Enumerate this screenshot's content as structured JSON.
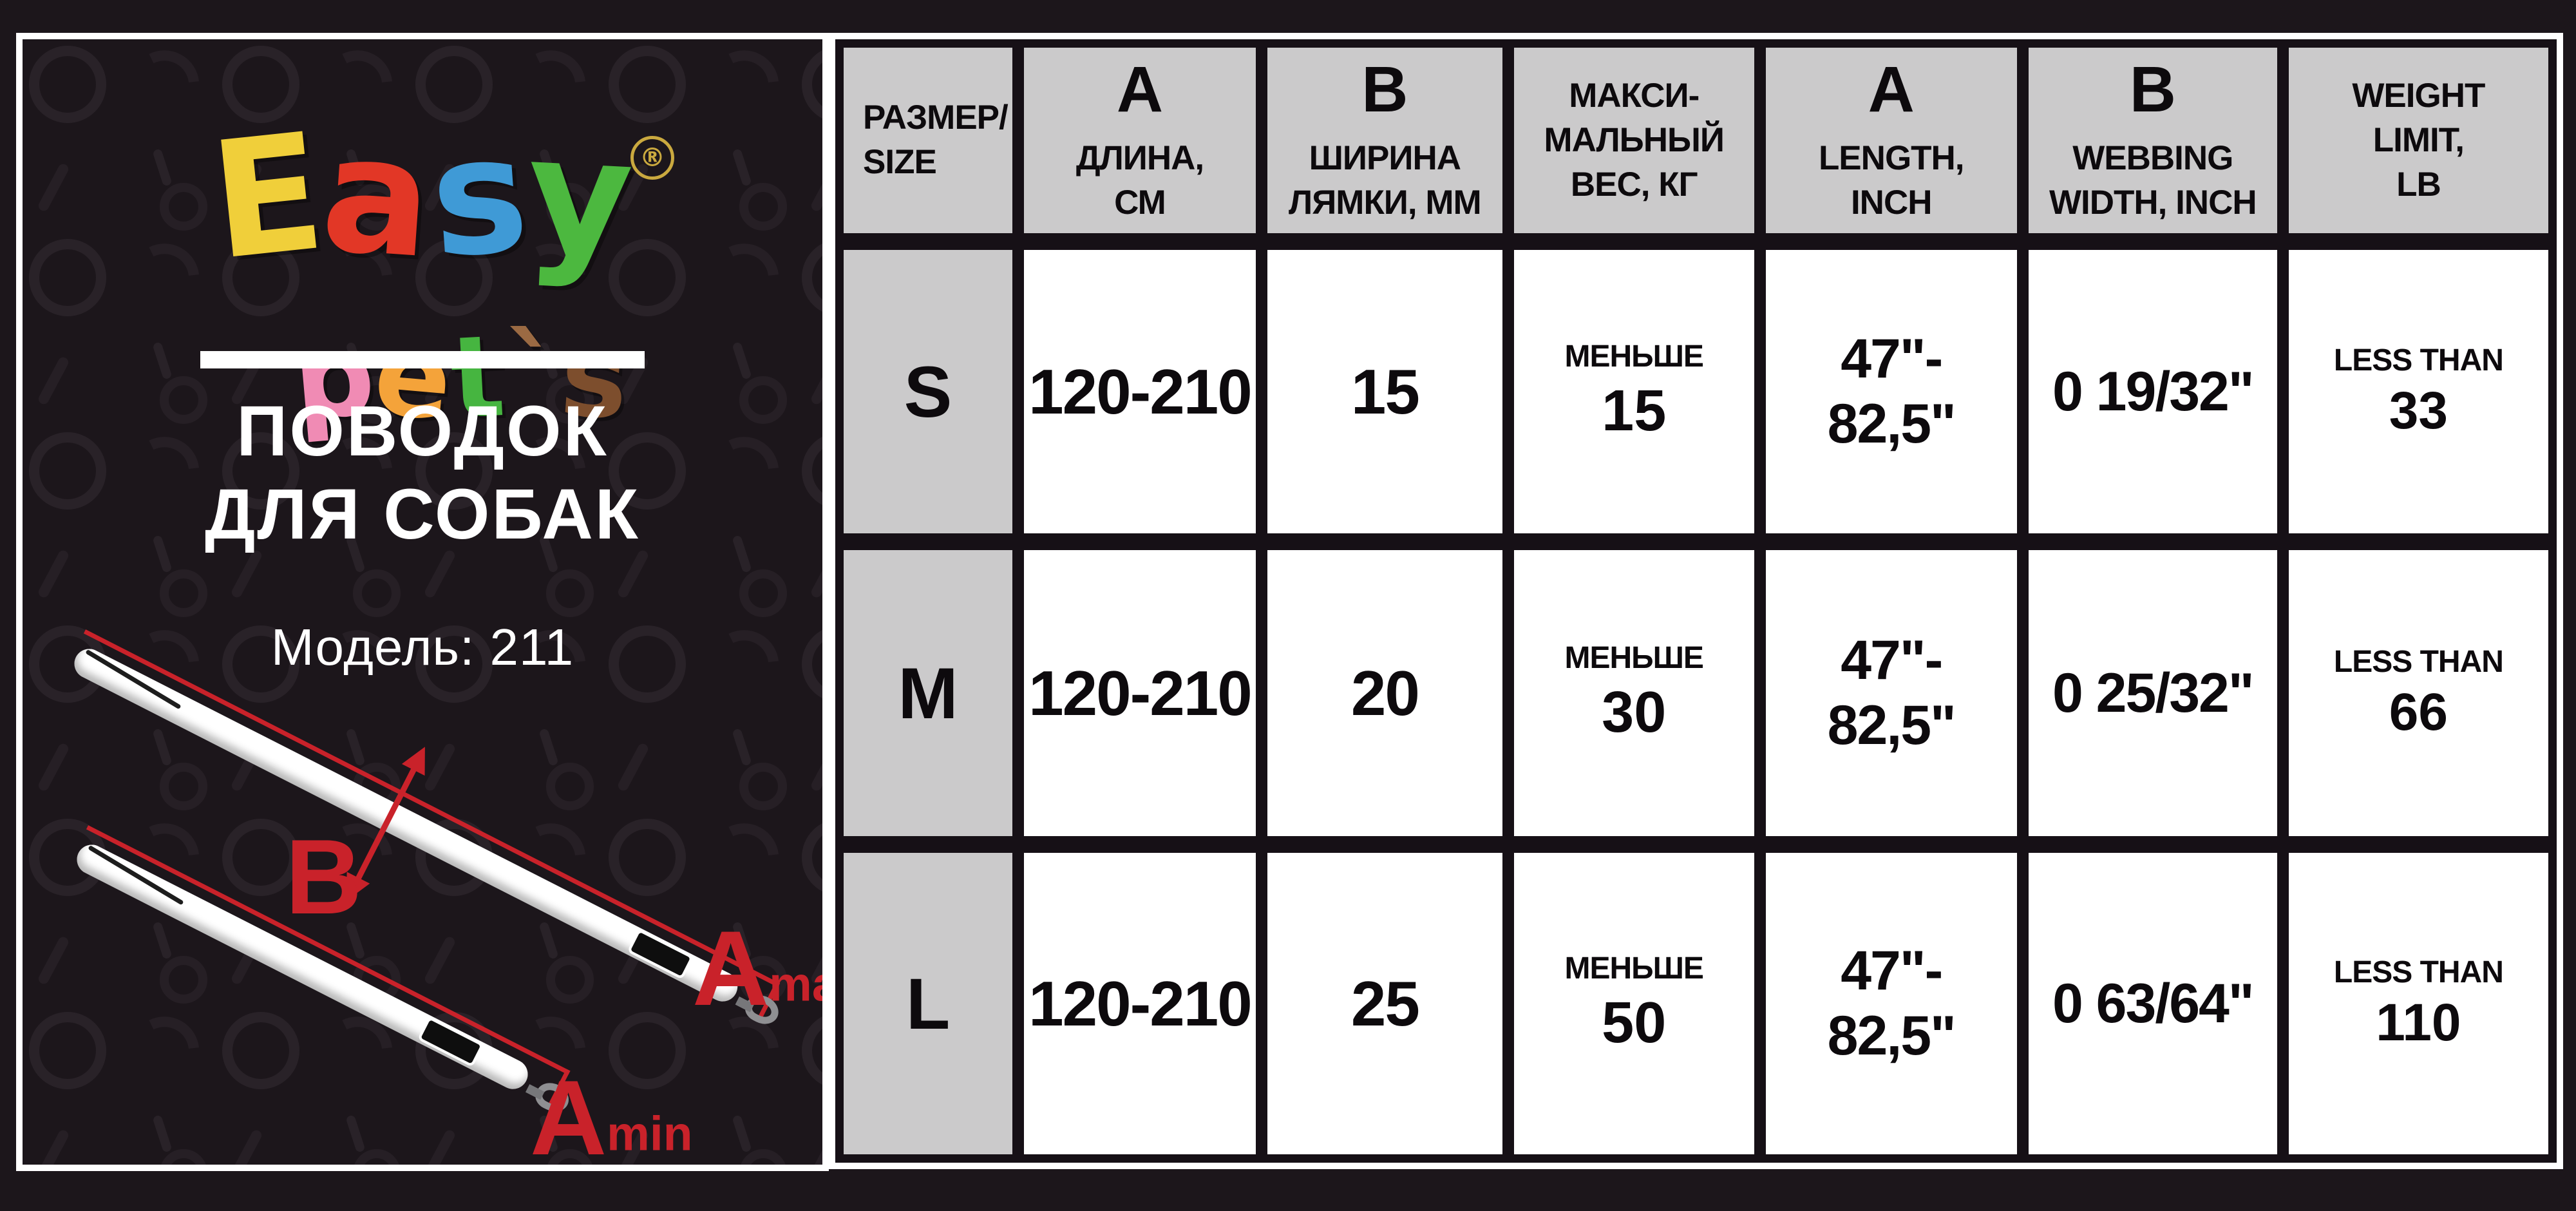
{
  "colors": {
    "accent_red": "#c9222a",
    "header_gray": "#cbcacb",
    "panel_bg": "#201a20",
    "page_bg": "#1c161b",
    "grid_black": "#161016",
    "white": "#ffffff"
  },
  "brand": {
    "easy": [
      {
        "ch": "E",
        "color": "#f0cf3a",
        "rot": -6
      },
      {
        "ch": "a",
        "color": "#e23726",
        "rot": 4
      },
      {
        "ch": "s",
        "color": "#3f9ad6",
        "rot": -4
      },
      {
        "ch": "y",
        "color": "#4cb83f",
        "rot": 3
      }
    ],
    "pets": [
      {
        "ch": "p",
        "color": "#f08bb4",
        "rot": -5
      },
      {
        "ch": "e",
        "color": "#f4a33a",
        "rot": 5
      },
      {
        "ch": "t",
        "color": "#46b540",
        "rot": -3
      },
      {
        "ch": "`",
        "color": "#9b6a43",
        "rot": 0
      },
      {
        "ch": "s",
        "color": "#7d4e2d",
        "rot": 4
      }
    ],
    "reg_mark": "®"
  },
  "panel": {
    "title_line1": "ПОВОДОК",
    "title_line2": "ДЛЯ СОБАК",
    "model": "Модель: 211"
  },
  "diagram": {
    "b_label": "B",
    "a_max_base": "A",
    "a_max_sup": "max",
    "a_min_base": "A",
    "a_min_sup": "min"
  },
  "table": {
    "headers": [
      {
        "big": "",
        "lines": [
          "РАЗМЕР/",
          "SIZE"
        ]
      },
      {
        "big": "A",
        "lines": [
          "ДЛИНА,",
          "СМ"
        ]
      },
      {
        "big": "B",
        "lines": [
          "ШИРИНА",
          "ЛЯМКИ, ММ"
        ]
      },
      {
        "big": "",
        "lines": [
          "МАКСИ-",
          "МАЛЬНЫЙ",
          "ВЕС, КГ"
        ]
      },
      {
        "big": "A",
        "lines": [
          "LENGTH,",
          "INCH"
        ]
      },
      {
        "big": "B",
        "lines": [
          "WEBBING",
          "WIDTH, INCH"
        ]
      },
      {
        "big": "",
        "lines": [
          "WEIGHT",
          "LIMIT,",
          "LB"
        ]
      }
    ],
    "rows": [
      {
        "size": "S",
        "length_cm": "120-210",
        "width_mm": "15",
        "max_label": "МЕНЬШЕ",
        "max_kg": "15",
        "inch_line1": "47\"-",
        "inch_line2": "82,5\"",
        "width_inch": "0 19/32\"",
        "limit_label": "LESS THAN",
        "limit_lb": "33"
      },
      {
        "size": "M",
        "length_cm": "120-210",
        "width_mm": "20",
        "max_label": "МЕНЬШЕ",
        "max_kg": "30",
        "inch_line1": "47\"-",
        "inch_line2": "82,5\"",
        "width_inch": "0 25/32\"",
        "limit_label": "LESS THAN",
        "limit_lb": "66"
      },
      {
        "size": "L",
        "length_cm": "120-210",
        "width_mm": "25",
        "max_label": "МЕНЬШЕ",
        "max_kg": "50",
        "inch_line1": "47\"-",
        "inch_line2": "82,5\"",
        "width_inch": "0 63/64\"",
        "limit_label": "LESS THAN",
        "limit_lb": "110"
      }
    ]
  }
}
